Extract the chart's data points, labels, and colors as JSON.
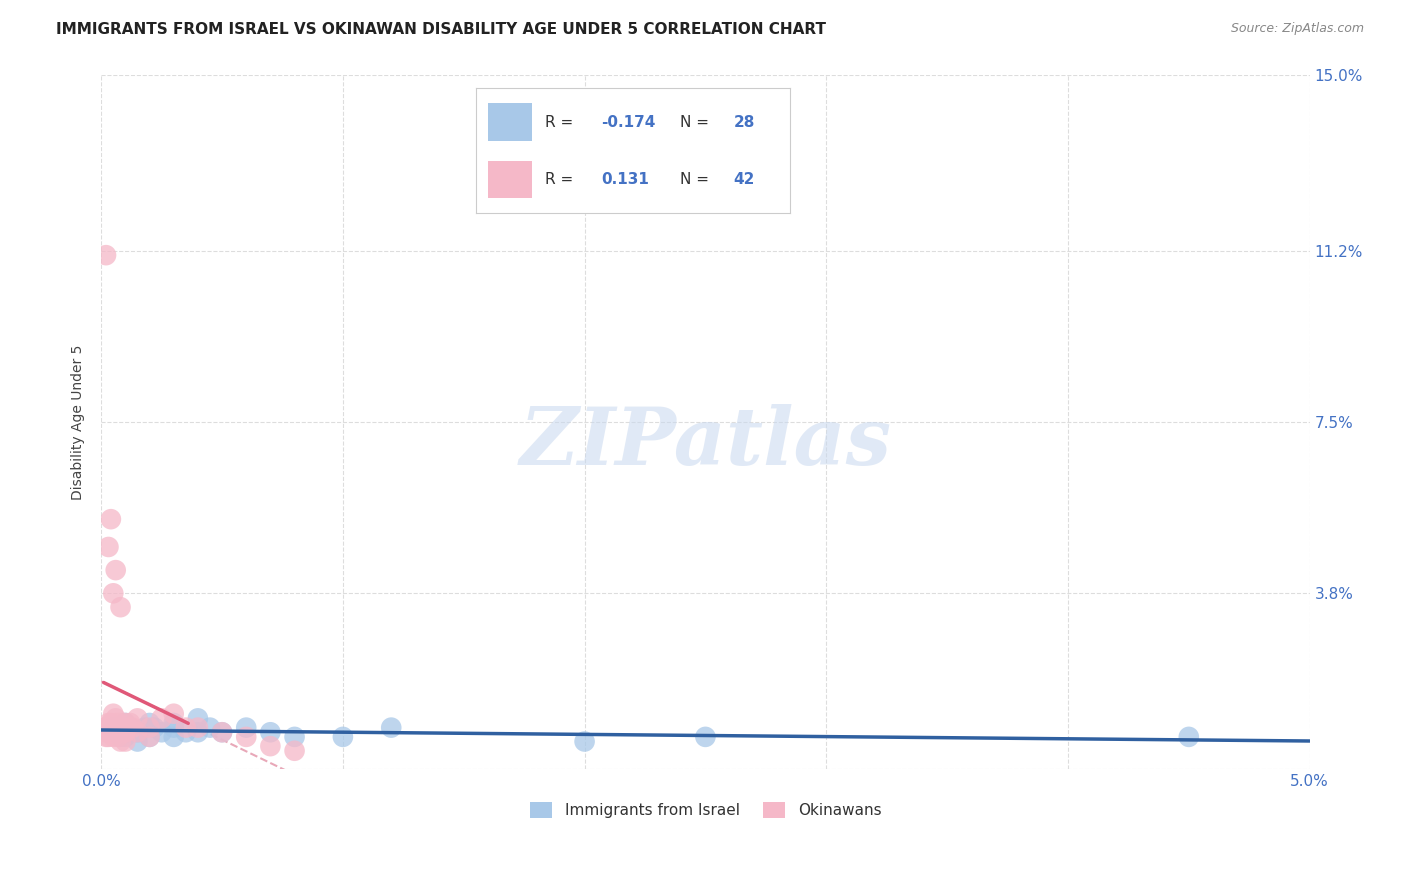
{
  "title": "IMMIGRANTS FROM ISRAEL VS OKINAWAN DISABILITY AGE UNDER 5 CORRELATION CHART",
  "source": "Source: ZipAtlas.com",
  "ylabel": "Disability Age Under 5",
  "xlim": [
    0.0,
    0.05
  ],
  "ylim": [
    0.0,
    0.15
  ],
  "xticks": [
    0.0,
    0.01,
    0.02,
    0.03,
    0.04,
    0.05
  ],
  "xticklabels": [
    "0.0%",
    "",
    "",
    "",
    "",
    "5.0%"
  ],
  "ytick_positions": [
    0.0,
    0.038,
    0.075,
    0.112,
    0.15
  ],
  "yticklabels": [
    "",
    "3.8%",
    "7.5%",
    "11.2%",
    "15.0%"
  ],
  "background_color": "#ffffff",
  "grid_color": "#dddddd",
  "watermark": "ZIPatlas",
  "israel_color": "#a8c8e8",
  "okinawan_color": "#f5b8c8",
  "israel_line_color": "#3060a0",
  "okinawan_line_color": "#e05878",
  "okinawan_dashed_color": "#e8a8b8",
  "israel_scatter_x": [
    0.0005,
    0.0008,
    0.001,
    0.001,
    0.0012,
    0.0015,
    0.0015,
    0.0018,
    0.002,
    0.002,
    0.0022,
    0.0025,
    0.003,
    0.003,
    0.003,
    0.0035,
    0.004,
    0.004,
    0.0045,
    0.005,
    0.006,
    0.007,
    0.008,
    0.01,
    0.012,
    0.02,
    0.025,
    0.045
  ],
  "israel_scatter_y": [
    0.009,
    0.007,
    0.01,
    0.007,
    0.009,
    0.008,
    0.006,
    0.009,
    0.01,
    0.007,
    0.009,
    0.008,
    0.01,
    0.009,
    0.007,
    0.008,
    0.011,
    0.008,
    0.009,
    0.008,
    0.009,
    0.008,
    0.007,
    0.007,
    0.009,
    0.006,
    0.007,
    0.007
  ],
  "okinawan_scatter_x": [
    0.0001,
    0.0002,
    0.0002,
    0.0003,
    0.0003,
    0.0003,
    0.0004,
    0.0004,
    0.0005,
    0.0005,
    0.0005,
    0.0006,
    0.0006,
    0.0007,
    0.0007,
    0.0008,
    0.0008,
    0.0009,
    0.001,
    0.001,
    0.001,
    0.0011,
    0.0012,
    0.0013,
    0.0015,
    0.0015,
    0.002,
    0.002,
    0.0025,
    0.003,
    0.0035,
    0.004,
    0.005,
    0.006,
    0.007,
    0.008,
    0.0004,
    0.0003,
    0.0002,
    0.0005,
    0.0006,
    0.0008
  ],
  "okinawan_scatter_y": [
    0.009,
    0.008,
    0.007,
    0.01,
    0.009,
    0.007,
    0.01,
    0.008,
    0.012,
    0.009,
    0.007,
    0.011,
    0.008,
    0.01,
    0.007,
    0.009,
    0.006,
    0.008,
    0.01,
    0.008,
    0.006,
    0.009,
    0.01,
    0.009,
    0.011,
    0.008,
    0.009,
    0.007,
    0.011,
    0.012,
    0.009,
    0.009,
    0.008,
    0.007,
    0.005,
    0.004,
    0.054,
    0.048,
    0.111,
    0.038,
    0.043,
    0.035
  ],
  "title_fontsize": 11,
  "axis_label_fontsize": 10,
  "tick_fontsize": 11,
  "source_fontsize": 9
}
